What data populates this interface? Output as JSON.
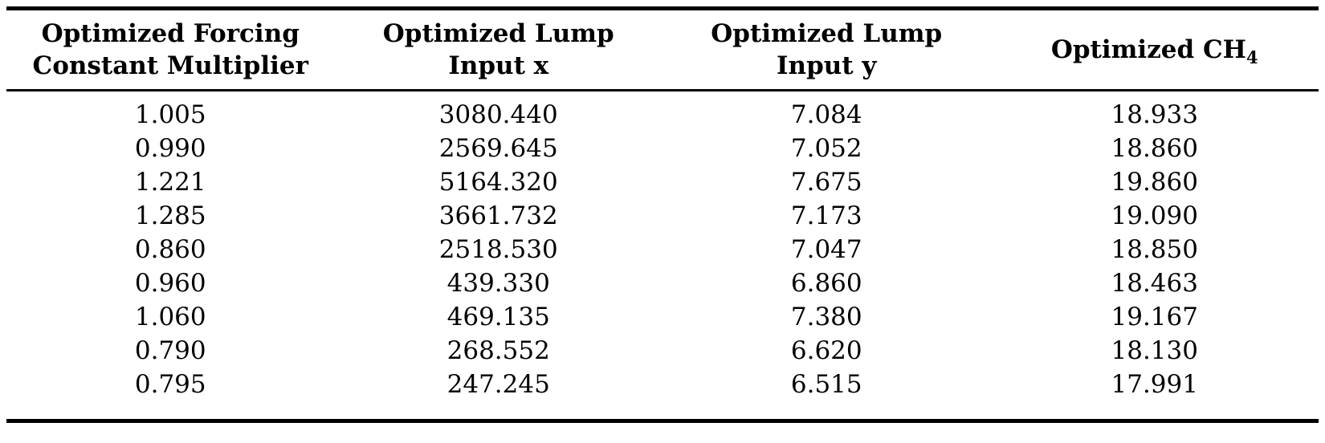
{
  "table": {
    "columns": [
      {
        "line1": "Optimized Forcing",
        "line2": "Constant Multiplier"
      },
      {
        "line1": "Optimized Lump",
        "line2": "Input x"
      },
      {
        "line1": "Optimized Lump",
        "line2": "Input y"
      },
      {
        "line1": "Optimized CH",
        "sub": "4"
      }
    ],
    "rows": [
      [
        "1.005",
        "3080.440",
        "7.084",
        "18.933"
      ],
      [
        "0.990",
        "2569.645",
        "7.052",
        "18.860"
      ],
      [
        "1.221",
        "5164.320",
        "7.675",
        "19.860"
      ],
      [
        "1.285",
        "3661.732",
        "7.173",
        "19.090"
      ],
      [
        "0.860",
        "2518.530",
        "7.047",
        "18.850"
      ],
      [
        "0.960",
        "439.330",
        "6.860",
        "18.463"
      ],
      [
        "1.060",
        "469.135",
        "7.380",
        "19.167"
      ],
      [
        "0.790",
        "268.552",
        "6.620",
        "18.130"
      ],
      [
        "0.795",
        "247.245",
        "6.515",
        "17.991"
      ]
    ]
  },
  "colors": {
    "text": "#000000",
    "background": "#ffffff",
    "rule": "#000000"
  },
  "chart_data": {
    "type": "table",
    "title": "",
    "columns": [
      "Optimized Forcing Constant Multiplier",
      "Optimized Lump Input x",
      "Optimized Lump Input y",
      "Optimized CH4"
    ],
    "rows": [
      [
        1.005,
        3080.44,
        7.084,
        18.933
      ],
      [
        0.99,
        2569.645,
        7.052,
        18.86
      ],
      [
        1.221,
        5164.32,
        7.675,
        19.86
      ],
      [
        1.285,
        3661.732,
        7.173,
        19.09
      ],
      [
        0.86,
        2518.53,
        7.047,
        18.85
      ],
      [
        0.96,
        439.33,
        6.86,
        18.463
      ],
      [
        1.06,
        469.135,
        7.38,
        19.167
      ],
      [
        0.79,
        268.552,
        6.62,
        18.13
      ],
      [
        0.795,
        247.245,
        6.515,
        17.991
      ]
    ]
  }
}
